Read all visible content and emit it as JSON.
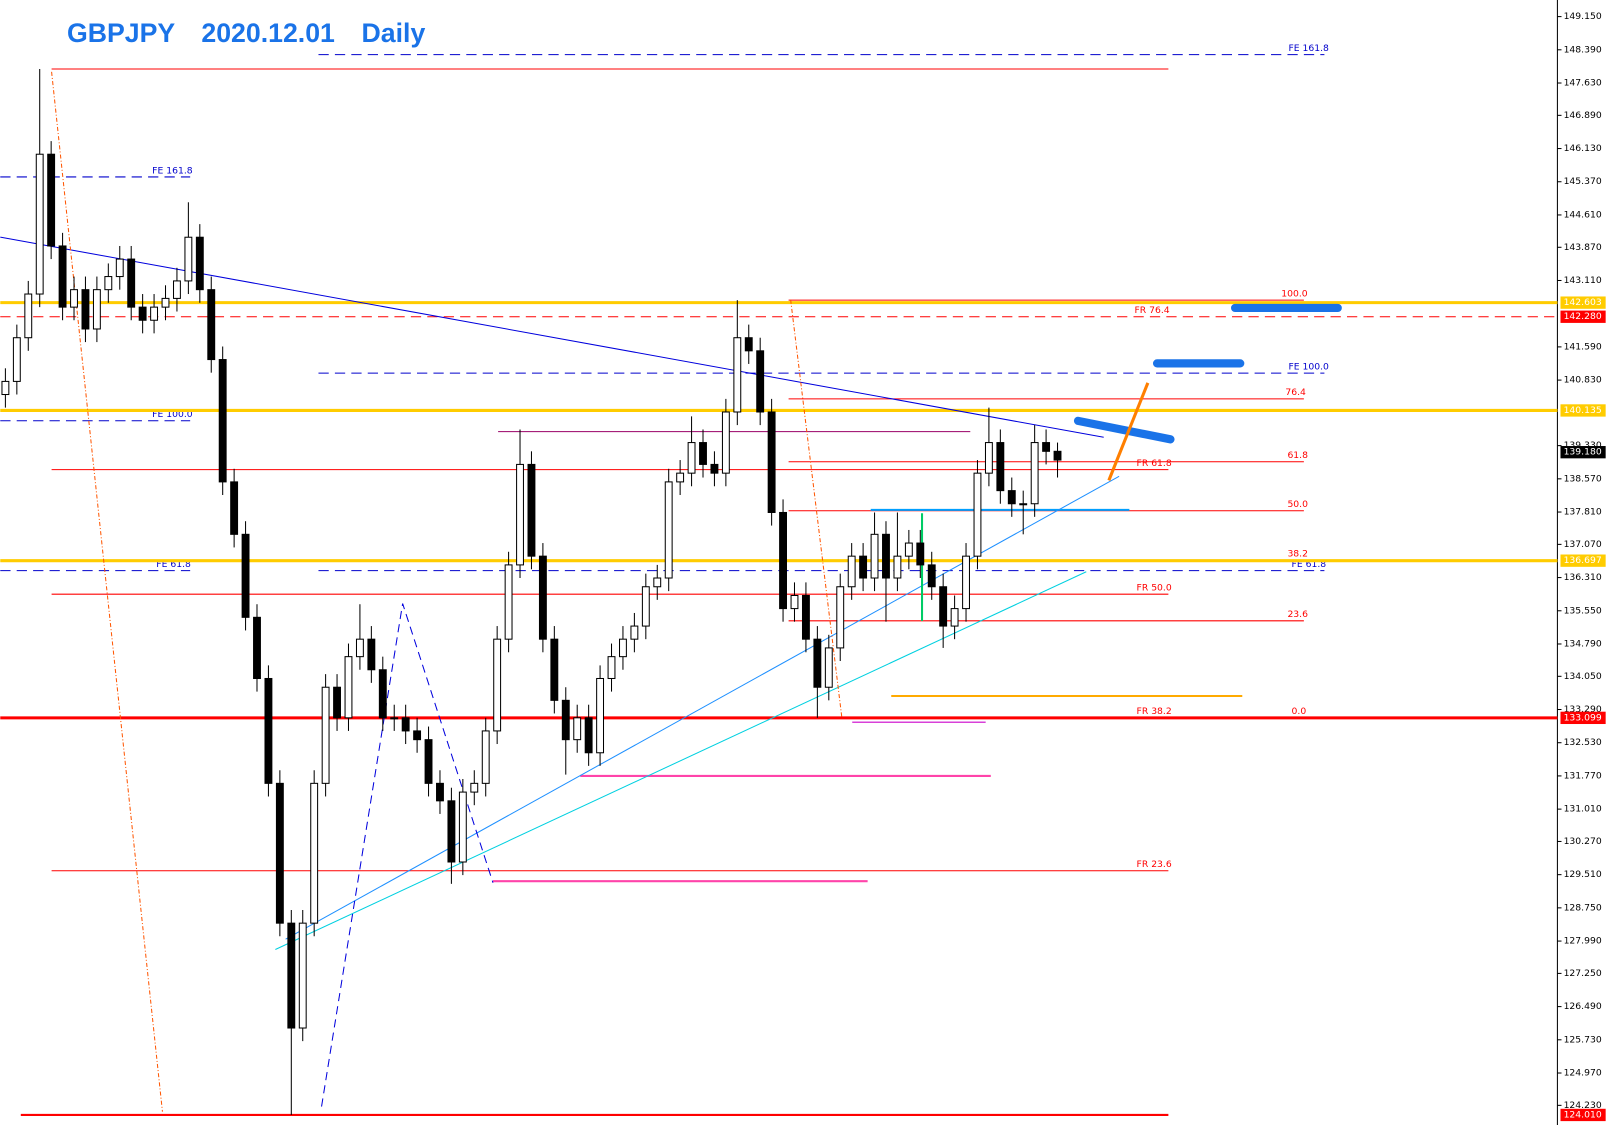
{
  "chart_data": {
    "type": "candlestick",
    "title": "GBPJPY　2020.12.01　Daily",
    "ylim": [
      123.78,
      149.53
    ],
    "yticks": [
      {
        "value": 149.15,
        "label": "149.150"
      },
      {
        "value": 148.39,
        "label": "148.390"
      },
      {
        "value": 147.63,
        "label": "147.630"
      },
      {
        "value": 146.89,
        "label": "146.890"
      },
      {
        "value": 146.13,
        "label": "146.130"
      },
      {
        "value": 145.37,
        "label": "145.370"
      },
      {
        "value": 144.61,
        "label": "144.610"
      },
      {
        "value": 143.87,
        "label": "143.870"
      },
      {
        "value": 143.11,
        "label": "143.110"
      },
      {
        "value": 141.59,
        "label": "141.590"
      },
      {
        "value": 140.83,
        "label": "140.830"
      },
      {
        "value": 139.33,
        "label": "139.330"
      },
      {
        "value": 138.57,
        "label": "138.570"
      },
      {
        "value": 137.81,
        "label": "137.810"
      },
      {
        "value": 137.07,
        "label": "137.070"
      },
      {
        "value": 136.31,
        "label": "136.310"
      },
      {
        "value": 135.55,
        "label": "135.550"
      },
      {
        "value": 134.79,
        "label": "134.790"
      },
      {
        "value": 134.05,
        "label": "134.050"
      },
      {
        "value": 133.29,
        "label": "133.290"
      },
      {
        "value": 132.53,
        "label": "132.530"
      },
      {
        "value": 131.77,
        "label": "131.770"
      },
      {
        "value": 131.01,
        "label": "131.010"
      },
      {
        "value": 130.27,
        "label": "130.270"
      },
      {
        "value": 129.51,
        "label": "129.510"
      },
      {
        "value": 128.75,
        "label": "128.750"
      },
      {
        "value": 127.99,
        "label": "127.990"
      },
      {
        "value": 127.25,
        "label": "127.250"
      },
      {
        "value": 126.49,
        "label": "126.490"
      },
      {
        "value": 125.73,
        "label": "125.730"
      },
      {
        "value": 124.97,
        "label": "124.970"
      },
      {
        "value": 124.23,
        "label": "124.230"
      }
    ],
    "ohlc": [
      [
        140.5,
        141.1,
        140.2,
        140.8
      ],
      [
        140.8,
        142.1,
        140.5,
        141.8
      ],
      [
        141.8,
        143.1,
        141.5,
        142.8
      ],
      [
        142.8,
        147.95,
        142.5,
        146.0
      ],
      [
        146.0,
        146.3,
        143.6,
        143.9
      ],
      [
        143.9,
        144.2,
        142.2,
        142.5
      ],
      [
        142.5,
        143.2,
        142.2,
        142.9
      ],
      [
        142.9,
        143.2,
        141.7,
        142.0
      ],
      [
        142.0,
        143.2,
        141.7,
        142.9
      ],
      [
        142.9,
        143.5,
        142.6,
        143.2
      ],
      [
        143.2,
        143.9,
        142.9,
        143.6
      ],
      [
        143.6,
        143.9,
        142.2,
        142.5
      ],
      [
        142.5,
        142.8,
        141.9,
        142.2
      ],
      [
        142.2,
        142.8,
        141.9,
        142.5
      ],
      [
        142.5,
        143.0,
        142.2,
        142.7
      ],
      [
        142.7,
        143.4,
        142.4,
        143.1
      ],
      [
        143.1,
        144.9,
        142.8,
        144.1
      ],
      [
        144.1,
        144.4,
        142.6,
        142.9
      ],
      [
        142.9,
        143.2,
        141.0,
        141.3
      ],
      [
        141.3,
        141.6,
        138.2,
        138.5
      ],
      [
        138.5,
        138.8,
        137.0,
        137.3
      ],
      [
        137.3,
        137.6,
        135.1,
        135.4
      ],
      [
        135.4,
        135.7,
        133.7,
        134.0
      ],
      [
        134.0,
        134.3,
        131.3,
        131.6
      ],
      [
        131.6,
        131.9,
        128.1,
        128.4
      ],
      [
        128.4,
        128.7,
        124.01,
        126.0
      ],
      [
        126.0,
        128.7,
        125.7,
        128.4
      ],
      [
        128.4,
        131.9,
        128.1,
        131.6
      ],
      [
        131.6,
        134.1,
        131.3,
        133.8
      ],
      [
        133.8,
        134.1,
        132.8,
        133.1
      ],
      [
        133.1,
        134.8,
        132.8,
        134.5
      ],
      [
        134.5,
        135.7,
        134.2,
        134.9
      ],
      [
        134.9,
        135.2,
        133.9,
        134.2
      ],
      [
        134.2,
        134.5,
        132.8,
        133.1
      ],
      [
        133.1,
        133.4,
        132.8,
        133.1
      ],
      [
        133.1,
        133.4,
        132.5,
        132.8
      ],
      [
        132.8,
        133.1,
        132.3,
        132.6
      ],
      [
        132.6,
        132.9,
        131.3,
        131.6
      ],
      [
        131.6,
        131.9,
        130.9,
        131.2
      ],
      [
        131.2,
        131.5,
        129.3,
        129.8
      ],
      [
        129.8,
        131.7,
        129.5,
        131.4
      ],
      [
        131.4,
        131.9,
        131.1,
        131.6
      ],
      [
        131.6,
        133.1,
        131.3,
        132.8
      ],
      [
        132.8,
        135.2,
        132.5,
        134.9
      ],
      [
        134.9,
        136.9,
        134.6,
        136.6
      ],
      [
        136.6,
        139.7,
        136.3,
        138.9
      ],
      [
        138.9,
        139.2,
        136.5,
        136.8
      ],
      [
        136.8,
        137.1,
        134.6,
        134.9
      ],
      [
        134.9,
        135.2,
        133.2,
        133.5
      ],
      [
        133.5,
        133.8,
        131.8,
        132.6
      ],
      [
        132.6,
        133.4,
        132.3,
        133.1
      ],
      [
        133.1,
        133.4,
        132.0,
        132.3
      ],
      [
        132.3,
        134.3,
        132.0,
        134.0
      ],
      [
        134.0,
        134.8,
        133.7,
        134.5
      ],
      [
        134.5,
        135.2,
        134.2,
        134.9
      ],
      [
        134.9,
        135.5,
        134.6,
        135.2
      ],
      [
        135.2,
        136.4,
        134.9,
        136.1
      ],
      [
        136.1,
        136.6,
        135.8,
        136.3
      ],
      [
        136.3,
        138.8,
        136.0,
        138.5
      ],
      [
        138.5,
        139.0,
        138.2,
        138.7
      ],
      [
        138.7,
        140.0,
        138.4,
        139.4
      ],
      [
        139.4,
        139.7,
        138.6,
        138.9
      ],
      [
        138.9,
        139.2,
        138.4,
        138.7
      ],
      [
        138.7,
        140.4,
        138.4,
        140.1
      ],
      [
        140.1,
        142.66,
        139.8,
        141.8
      ],
      [
        141.8,
        142.1,
        141.2,
        141.5
      ],
      [
        141.5,
        141.8,
        139.8,
        140.1
      ],
      [
        140.1,
        140.4,
        137.5,
        137.8
      ],
      [
        137.8,
        138.1,
        135.3,
        135.6
      ],
      [
        135.6,
        136.2,
        135.3,
        135.9
      ],
      [
        135.9,
        136.2,
        134.6,
        134.9
      ],
      [
        134.9,
        135.2,
        133.1,
        133.8
      ],
      [
        133.8,
        135.0,
        133.5,
        134.7
      ],
      [
        134.7,
        136.4,
        134.4,
        136.1
      ],
      [
        136.1,
        137.1,
        135.8,
        136.8
      ],
      [
        136.8,
        137.1,
        136.0,
        136.3
      ],
      [
        136.3,
        137.8,
        136.0,
        137.3
      ],
      [
        137.3,
        137.6,
        135.3,
        136.3
      ],
      [
        136.3,
        137.8,
        136.0,
        136.8
      ],
      [
        136.8,
        137.4,
        136.5,
        137.1
      ],
      [
        137.1,
        137.4,
        136.3,
        136.6
      ],
      [
        136.6,
        136.9,
        135.8,
        136.1
      ],
      [
        136.1,
        136.4,
        134.7,
        135.2
      ],
      [
        135.2,
        135.9,
        134.9,
        135.6
      ],
      [
        135.6,
        137.1,
        135.3,
        136.8
      ],
      [
        136.8,
        139.0,
        136.5,
        138.7
      ],
      [
        138.7,
        140.2,
        138.4,
        139.4
      ],
      [
        139.4,
        139.7,
        138.0,
        138.3
      ],
      [
        138.3,
        138.6,
        137.7,
        138.0
      ],
      [
        138.0,
        138.3,
        137.3,
        138.0
      ],
      [
        138.0,
        139.8,
        137.7,
        139.4
      ],
      [
        139.4,
        139.7,
        138.9,
        139.2
      ],
      [
        139.2,
        139.4,
        138.6,
        139.0
      ]
    ],
    "levels": [
      {
        "value": 147.95,
        "color": "#ff0000"
      },
      {
        "value": 148.28,
        "label": "FE 161.8",
        "color": "#0000cc"
      },
      {
        "value": 145.48,
        "label": "FE 161.8",
        "color": "#0000cc"
      },
      {
        "value": 142.66,
        "label": "100.0",
        "color": "#ff0000"
      },
      {
        "value": 142.28,
        "label": "FR 76.4",
        "color": "#ff0000"
      },
      {
        "value": 140.99,
        "label": "FE 100.0",
        "color": "#0000cc"
      },
      {
        "value": 140.4,
        "label": "76.4",
        "color": "#ff0000"
      },
      {
        "value": 139.9,
        "label": "FE 100.0",
        "color": "#0000cc"
      },
      {
        "value": 139.65,
        "color": "#990066"
      },
      {
        "value": 138.96,
        "label": "61.8",
        "color": "#ff0000"
      },
      {
        "value": 138.78,
        "label": "FR 61.8",
        "color": "#ff0000"
      },
      {
        "value": 137.84,
        "label": "50.0",
        "color": "#ff0000"
      },
      {
        "value": 137.86,
        "color": "#00a0ff"
      },
      {
        "value": 136.71,
        "label": "38.2",
        "color": "#ff0000"
      },
      {
        "value": 136.47,
        "label": "FE 61.8",
        "color": "#0000cc"
      },
      {
        "value": 136.47,
        "label": "FE 61.8",
        "color": "#0000cc"
      },
      {
        "value": 135.93,
        "label": "FR 50.0",
        "color": "#ff0000"
      },
      {
        "value": 135.32,
        "label": "23.6",
        "color": "#ff0000"
      },
      {
        "value": 133.6,
        "color": "#ffaa00"
      },
      {
        "value": 133.099,
        "label": "FR 38.2",
        "color": "#ff0000"
      },
      {
        "value": 133.099,
        "label": "0.0",
        "color": "#ff0000"
      },
      {
        "value": 133.0,
        "color": "#cc00cc"
      },
      {
        "value": 131.77,
        "color": "#ff44aa"
      },
      {
        "value": 129.6,
        "label": "FR 23.6",
        "color": "#ff0000"
      },
      {
        "value": 129.36,
        "color": "#ff44aa"
      },
      {
        "value": 124.01,
        "color": "#ff0000"
      }
    ],
    "price_tags": [
      {
        "value": 142.603,
        "label": "142.603",
        "color": "#ffcc00"
      },
      {
        "value": 142.28,
        "label": "142.280",
        "color": "#ff0000"
      },
      {
        "value": 140.135,
        "label": "140.135",
        "color": "#ffcc00"
      },
      {
        "value": 139.18,
        "label": "139.180",
        "color": "#000000"
      },
      {
        "value": 136.697,
        "label": "136.697",
        "color": "#ffcc00"
      },
      {
        "value": 133.099,
        "label": "133.099",
        "color": "#ff0000"
      },
      {
        "value": 124.01,
        "label": "124.010",
        "color": "#ff0000"
      }
    ]
  }
}
